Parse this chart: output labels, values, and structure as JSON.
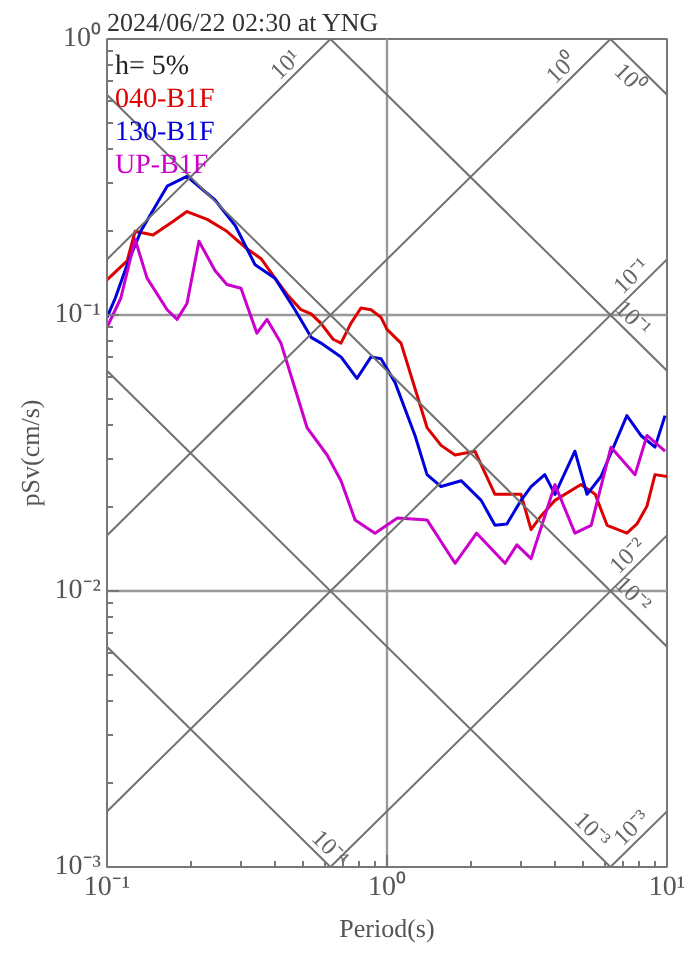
{
  "chart_data": {
    "type": "line",
    "title": "2024/06/22 02:30 at YNG",
    "xlabel": "Period(s)",
    "ylabel": "pSv(cm/s)",
    "legend_title": "h= 5%",
    "legend": "top left",
    "log": "xy",
    "grid": true,
    "marker": "none",
    "line_style": "solid",
    "xlim": [
      0.1,
      10
    ],
    "ylim": [
      0.001,
      1
    ],
    "xticks": [
      {
        "value": 0.1,
        "label": "10⁻¹"
      },
      {
        "value": 1,
        "label": "10⁰"
      },
      {
        "value": 10,
        "label": "10¹"
      }
    ],
    "yticks": [
      {
        "value": 0.001,
        "label": "10⁻³"
      },
      {
        "value": 0.01,
        "label": "10⁻²"
      },
      {
        "value": 0.1,
        "label": "10⁻¹"
      },
      {
        "value": 1,
        "label": "10⁰"
      }
    ],
    "series": [
      {
        "name": "040-B1F",
        "color": "#dd0000",
        "x": [
          0.1,
          0.118,
          0.126,
          0.146,
          0.172,
          0.193,
          0.228,
          0.268,
          0.311,
          0.355,
          0.398,
          0.439,
          0.493,
          0.536,
          0.581,
          0.642,
          0.685,
          0.743,
          0.807,
          0.877,
          0.952,
          1.0,
          1.122,
          1.39,
          1.56,
          1.75,
          2.06,
          2.43,
          3.01,
          3.27,
          3.55,
          3.98,
          4.93,
          5.54,
          6.11,
          7.19,
          7.81,
          8.48,
          9.06,
          10
        ],
        "values": [
          0.134,
          0.157,
          0.201,
          0.195,
          0.218,
          0.237,
          0.222,
          0.201,
          0.176,
          0.16,
          0.136,
          0.119,
          0.1045,
          0.101,
          0.0932,
          0.0817,
          0.0791,
          0.0932,
          0.106,
          0.1045,
          0.098,
          0.0887,
          0.0791,
          0.0391,
          0.0337,
          0.0311,
          0.0321,
          0.0224,
          0.0224,
          0.0167,
          0.0187,
          0.0213,
          0.0243,
          0.0224,
          0.0173,
          0.0162,
          0.0175,
          0.0203,
          0.0264,
          0.026
        ]
      },
      {
        "name": "130-B1F",
        "color": "#0000dd",
        "x": [
          0.1,
          0.107,
          0.118,
          0.132,
          0.164,
          0.193,
          0.243,
          0.287,
          0.338,
          0.398,
          0.469,
          0.536,
          0.581,
          0.685,
          0.781,
          0.877,
          0.952,
          1.068,
          1.259,
          1.39,
          1.56,
          1.84,
          2.17,
          2.43,
          2.68,
          3.01,
          3.27,
          3.66,
          3.98,
          4.69,
          5.18,
          5.81,
          7.19,
          8.07,
          9.06,
          9.84
        ],
        "values": [
          0.098,
          0.115,
          0.152,
          0.201,
          0.293,
          0.318,
          0.261,
          0.211,
          0.152,
          0.136,
          0.1045,
          0.083,
          0.0791,
          0.0705,
          0.0589,
          0.0705,
          0.0694,
          0.057,
          0.0366,
          0.0264,
          0.0239,
          0.0251,
          0.0213,
          0.0173,
          0.0175,
          0.0213,
          0.0239,
          0.0264,
          0.0224,
          0.0321,
          0.0224,
          0.026,
          0.0432,
          0.0366,
          0.0332,
          0.0432
        ]
      },
      {
        "name": "UP-B1F",
        "color": "#cc00cc",
        "x": [
          0.1,
          0.112,
          0.126,
          0.139,
          0.164,
          0.178,
          0.193,
          0.213,
          0.243,
          0.268,
          0.301,
          0.343,
          0.373,
          0.418,
          0.469,
          0.518,
          0.611,
          0.685,
          0.769,
          0.906,
          1.09,
          1.39,
          1.75,
          2.09,
          2.64,
          2.91,
          3.27,
          3.98,
          4.69,
          5.36,
          6.31,
          7.69,
          8.48,
          9.84
        ],
        "values": [
          0.0902,
          0.115,
          0.188,
          0.136,
          0.1045,
          0.0964,
          0.11,
          0.185,
          0.145,
          0.129,
          0.125,
          0.0859,
          0.0964,
          0.0791,
          0.0543,
          0.0391,
          0.0311,
          0.0251,
          0.0181,
          0.0162,
          0.0184,
          0.0181,
          0.0126,
          0.0162,
          0.0126,
          0.0147,
          0.0131,
          0.0243,
          0.0162,
          0.0173,
          0.0332,
          0.0264,
          0.0366,
          0.0321
        ]
      },
      {
        "color": "#707070",
        "x": [
          0.1,
          0.628
        ],
        "values": [
          0.159,
          1
        ]
      },
      {
        "color": "#707070",
        "x": [
          0.1,
          6.28
        ],
        "values": [
          0.0159,
          1
        ]
      },
      {
        "color": "#707070",
        "x": [
          0.1,
          10
        ],
        "values": [
          0.00159,
          0.159
        ]
      },
      {
        "color": "#707070",
        "x": [
          0.628,
          10
        ],
        "values": [
          0.001,
          0.0159
        ]
      },
      {
        "color": "#707070",
        "x": [
          6.28,
          10
        ],
        "values": [
          0.001,
          0.00159
        ]
      },
      {
        "color": "#707070",
        "x": [
          6.28,
          10
        ],
        "values": [
          1,
          0.628
        ]
      },
      {
        "color": "#707070",
        "x": [
          0.628,
          10
        ],
        "values": [
          1,
          0.0628
        ]
      },
      {
        "color": "#707070",
        "x": [
          0.1,
          10
        ],
        "values": [
          0.628,
          0.00628
        ]
      },
      {
        "color": "#707070",
        "x": [
          0.1,
          6.28
        ],
        "values": [
          0.0628,
          0.001
        ]
      },
      {
        "color": "#707070",
        "x": [
          0.1,
          0.628
        ],
        "values": [
          0.00628,
          0.001
        ]
      }
    ],
    "annotations": [
      {
        "text": "10¹",
        "x": 0.469,
        "y": 0.746
      },
      {
        "text": "10⁰",
        "x": 4.54,
        "y": 0.723
      },
      {
        "text": "10⁰",
        "x": 8.0,
        "y": 0.785
      },
      {
        "text": "10⁻¹",
        "x": 8.07,
        "y": 0.128
      },
      {
        "text": "10⁻¹",
        "x": 7.0,
        "y": 0.0898
      },
      {
        "text": "10⁻²",
        "x": 7.81,
        "y": 0.0124
      },
      {
        "text": "10⁻²",
        "x": 7.0,
        "y": 0.00898
      },
      {
        "text": "10⁻⁴",
        "x": 0.58,
        "y": 0.00108
      },
      {
        "text": "10⁻³",
        "x": 5.0,
        "y": 0.00126
      },
      {
        "text": "10⁻³",
        "x": 8.07,
        "y": 0.00128
      }
    ]
  }
}
